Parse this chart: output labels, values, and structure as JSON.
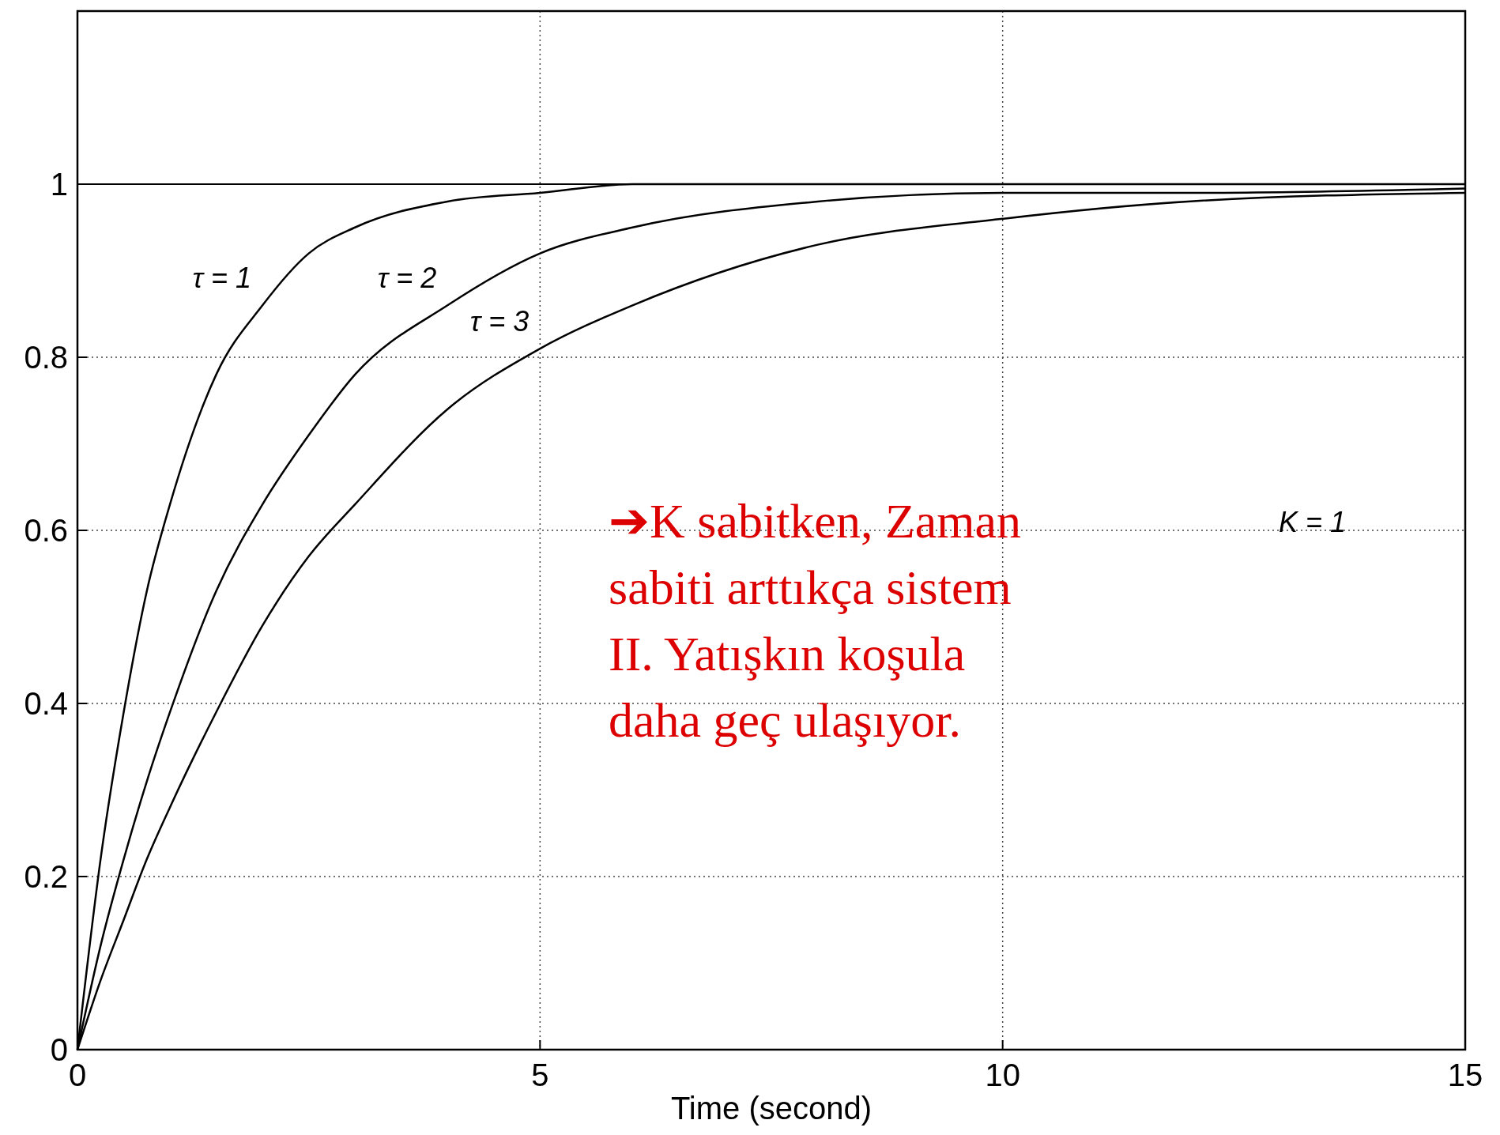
{
  "chart_data": {
    "type": "line",
    "xlabel": "Time (second)",
    "x": [
      0,
      0.25,
      0.5,
      0.75,
      1,
      1.5,
      2,
      2.5,
      3,
      4,
      5,
      6,
      8,
      10,
      12,
      15
    ],
    "series": [
      {
        "name": "τ = 1",
        "color": "#000000",
        "values": [
          0,
          0.22,
          0.39,
          0.53,
          0.63,
          0.78,
          0.86,
          0.92,
          0.95,
          0.98,
          0.99,
          1.0,
          1.0,
          1.0,
          1.0,
          1.0
        ]
      },
      {
        "name": "τ = 2",
        "color": "#000000",
        "values": [
          0,
          0.12,
          0.22,
          0.31,
          0.39,
          0.53,
          0.63,
          0.71,
          0.78,
          0.86,
          0.92,
          0.95,
          0.98,
          0.99,
          0.99,
          0.995
        ]
      },
      {
        "name": "τ = 3",
        "color": "#000000",
        "values": [
          0,
          0.08,
          0.15,
          0.22,
          0.28,
          0.39,
          0.49,
          0.57,
          0.63,
          0.74,
          0.81,
          0.86,
          0.93,
          0.96,
          0.98,
          0.99
        ]
      }
    ],
    "xlim": [
      0,
      15
    ],
    "ylim": [
      0,
      1.2
    ],
    "xticks": [
      0,
      5,
      10,
      15
    ],
    "yticks": [
      0,
      0.2,
      0.4,
      0.6,
      0.8,
      1
    ],
    "grid": true,
    "line_style": "solid",
    "marker": "none",
    "ref_lines": [
      {
        "axis": "y",
        "value": 1,
        "color": "#000000",
        "line_style": "solid"
      }
    ],
    "annotations": [
      "K = 1",
      "➔K sabitken, Zaman\nsabiti arttıkça sistem\nII. Yatışkın koşula\ndaha geç ulaşıyor."
    ]
  }
}
